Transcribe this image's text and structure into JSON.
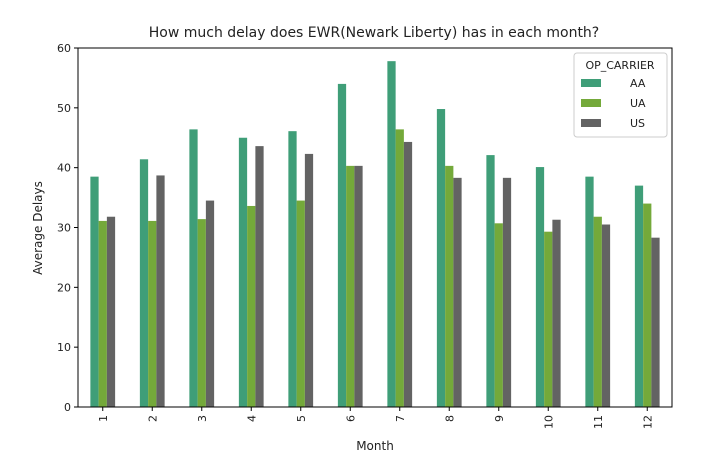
{
  "chart_data": {
    "type": "bar",
    "title": "How much delay does EWR(Newark Liberty) has in each month?",
    "xlabel": "Month",
    "ylabel": "Average Delays",
    "categories": [
      "1",
      "2",
      "3",
      "4",
      "5",
      "6",
      "7",
      "8",
      "9",
      "10",
      "11",
      "12"
    ],
    "ylim": [
      0,
      60
    ],
    "yticks": [
      0,
      10,
      20,
      30,
      40,
      50,
      60
    ],
    "grid": false,
    "legend": {
      "title": "OP_CARRIER",
      "placement": "top-right"
    },
    "series": [
      {
        "name": "AA",
        "color": "#3f9e78",
        "values": [
          38.5,
          41.4,
          46.4,
          45.0,
          46.1,
          54.0,
          57.8,
          49.8,
          42.1,
          40.1,
          38.5,
          37.0
        ]
      },
      {
        "name": "UA",
        "color": "#74a93a",
        "values": [
          31.1,
          31.1,
          31.4,
          33.6,
          34.5,
          40.3,
          46.4,
          40.3,
          30.7,
          29.3,
          31.8,
          34.0
        ]
      },
      {
        "name": "US",
        "color": "#636363",
        "values": [
          31.8,
          38.7,
          34.5,
          43.6,
          42.3,
          40.3,
          44.3,
          38.3,
          38.3,
          31.3,
          30.5,
          28.3
        ]
      }
    ]
  }
}
